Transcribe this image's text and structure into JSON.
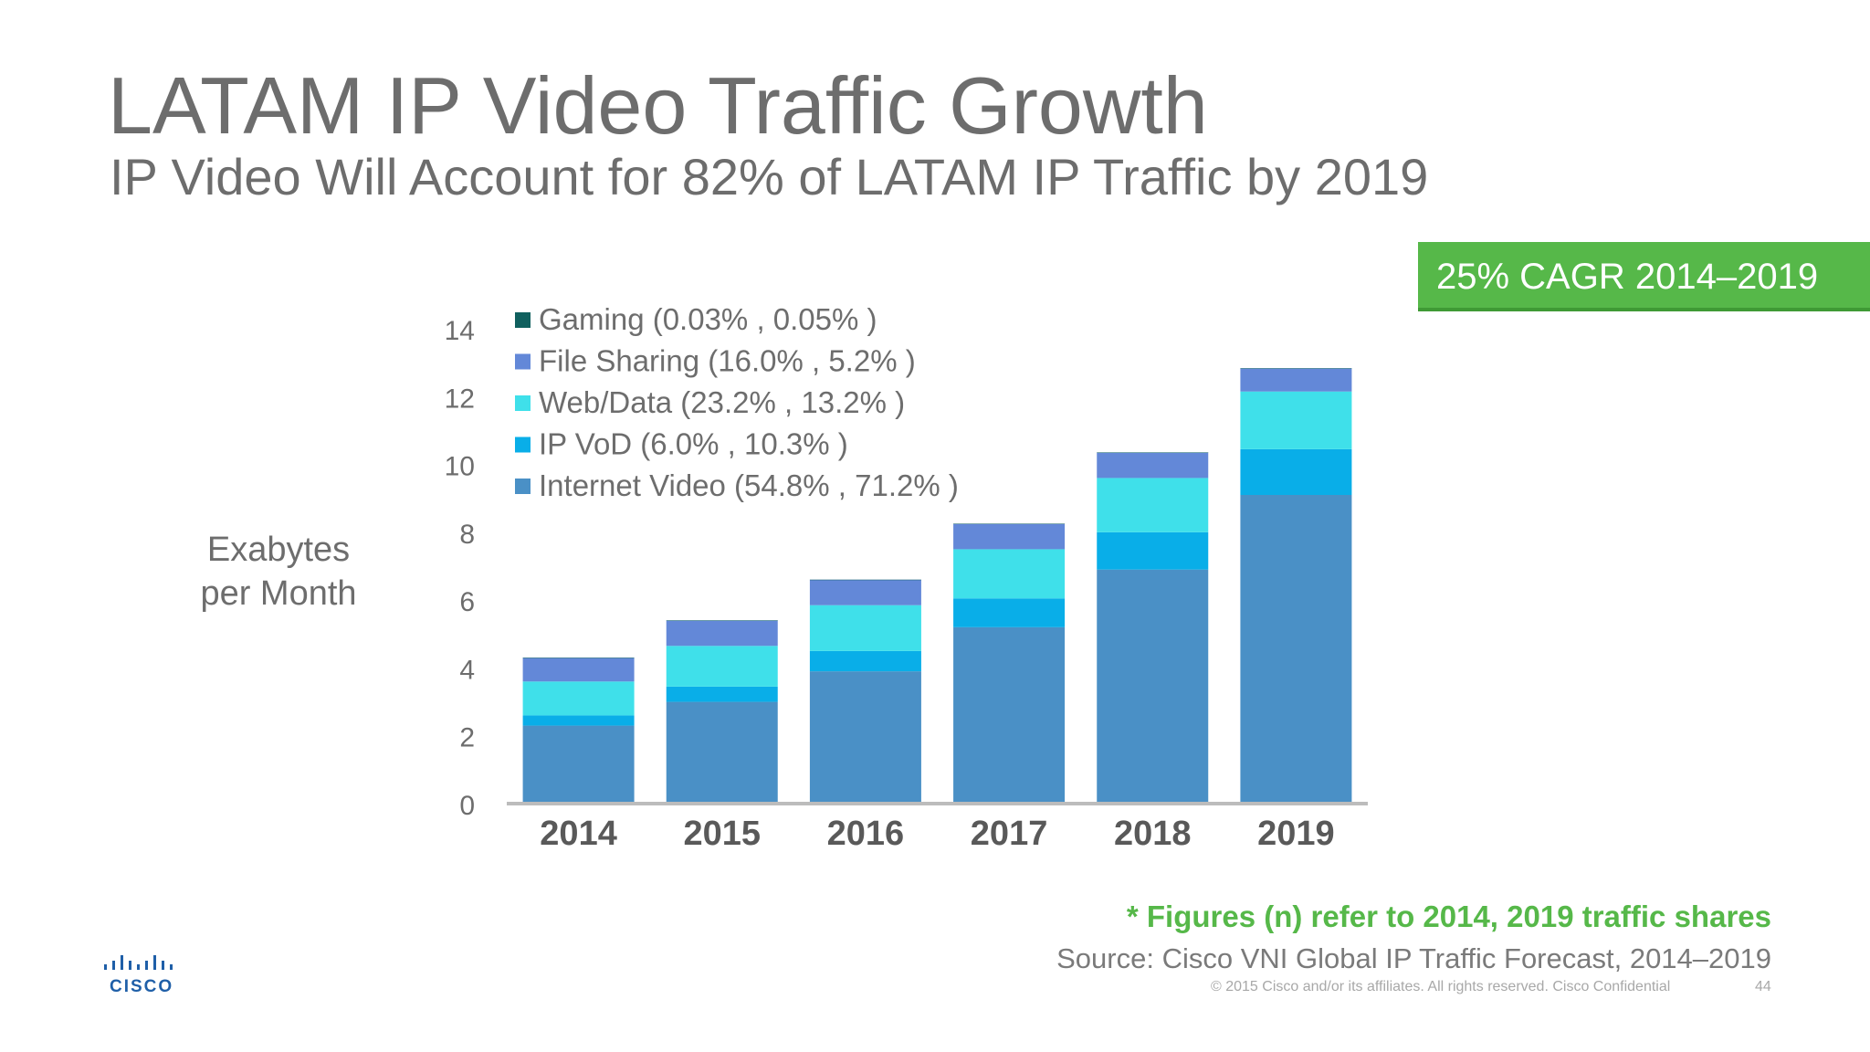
{
  "title": "LATAM IP Video Traffic Growth",
  "subtitle": "IP Video Will Account for 82% of LATAM IP Traffic by 2019",
  "cagr_badge": "25% CAGR 2014–2019",
  "ylabel_line1": "Exabytes",
  "ylabel_line2": "per Month",
  "footnote": "* Figures (n) refer to 2014, 2019 traffic shares",
  "source": "Source: Cisco VNI Global IP Traffic Forecast, 2014–2019",
  "copyright": "© 2015  Cisco and/or its affiliates. All rights reserved.   Cisco Confidential",
  "page_number": "44",
  "logo_text": "CISCO",
  "colors": {
    "internet_video": "#4a90c6",
    "ip_vod": "#09aee8",
    "web_data": "#3fe0ea",
    "file_sharing": "#6388d8",
    "gaming": "#10605e",
    "accent_green": "#56b849",
    "axis": "#bcbcbc",
    "text_gray": "#6d6d6d"
  },
  "chart_data": {
    "type": "bar",
    "stacked": true,
    "title": "",
    "xlabel": "",
    "ylabel": "Exabytes per Month",
    "categories": [
      "2014",
      "2015",
      "2016",
      "2017",
      "2018",
      "2019"
    ],
    "ylim": [
      0,
      14
    ],
    "yticks": [
      0,
      2,
      4,
      6,
      8,
      10,
      12,
      14
    ],
    "legend_position": "top-left",
    "series": [
      {
        "name": "Internet Video (54.8% , 71.2% )",
        "key": "internet_video",
        "values": [
          2.3,
          3.0,
          3.9,
          5.2,
          6.9,
          9.1
        ]
      },
      {
        "name": "IP VoD (6.0% , 10.3% )",
        "key": "ip_vod",
        "values": [
          0.3,
          0.45,
          0.6,
          0.85,
          1.1,
          1.35
        ]
      },
      {
        "name": "Web/Data (23.2% , 13.2% )",
        "key": "web_data",
        "values": [
          1.0,
          1.2,
          1.35,
          1.45,
          1.6,
          1.7
        ]
      },
      {
        "name": "File Sharing (16.0% , 5.2% )",
        "key": "file_sharing",
        "values": [
          0.7,
          0.75,
          0.75,
          0.75,
          0.75,
          0.68
        ]
      },
      {
        "name": "Gaming (0.03% , 0.05% )",
        "key": "gaming",
        "values": [
          0.0013,
          0.002,
          0.0025,
          0.003,
          0.004,
          0.0065
        ]
      }
    ],
    "legend_order": [
      "gaming",
      "file_sharing",
      "web_data",
      "ip_vod",
      "internet_video"
    ]
  }
}
